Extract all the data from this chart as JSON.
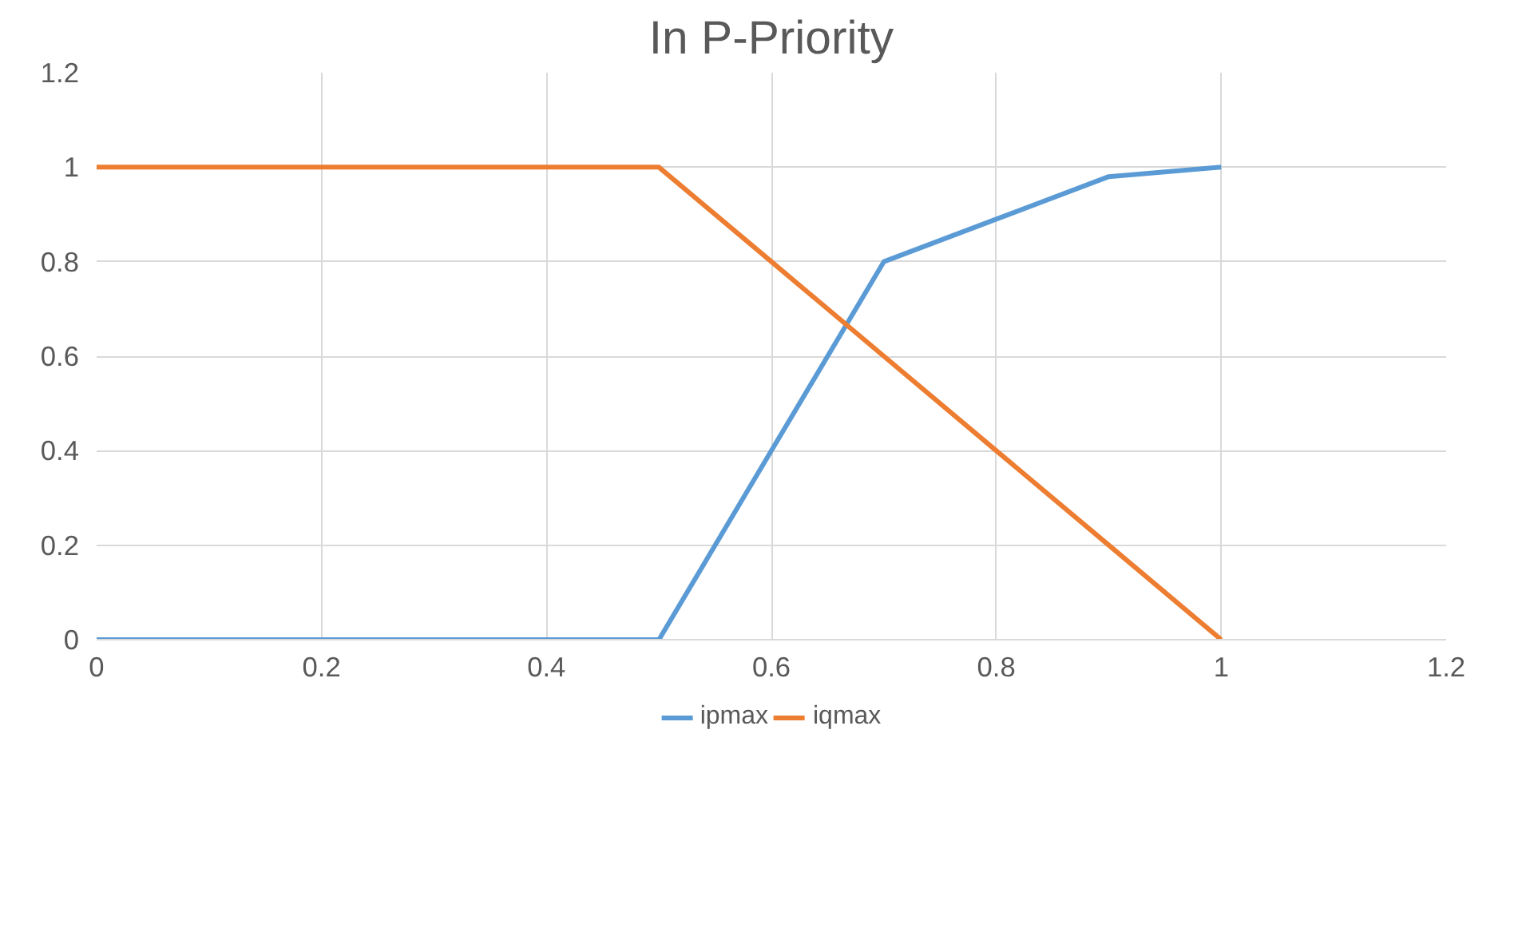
{
  "chart_data": {
    "type": "line",
    "title": "In P-Priority",
    "x": [
      0,
      0.1,
      0.2,
      0.3,
      0.4,
      0.5,
      0.6,
      0.7,
      0.8,
      0.9,
      1
    ],
    "series": [
      {
        "name": "ipmax",
        "color": "#5b9bd5",
        "values": [
          0,
          0,
          0,
          0,
          0,
          0,
          0.4,
          0.8,
          0.89,
          0.98,
          1
        ]
      },
      {
        "name": "iqmax",
        "color": "#ed7d31",
        "values": [
          1,
          1,
          1,
          1,
          1,
          1,
          0.8,
          0.6,
          0.4,
          0.2,
          0
        ]
      }
    ],
    "xlim": [
      0,
      1.2
    ],
    "xticks": [
      0,
      0.2,
      0.4,
      0.6,
      0.8,
      1,
      1.2
    ],
    "ylim": [
      0,
      1.2
    ],
    "yticks": [
      0,
      0.2,
      0.4,
      0.6,
      0.8,
      1,
      1.2
    ],
    "grid": true,
    "legend": "bottom",
    "marker": "none",
    "line_style": "solid"
  }
}
